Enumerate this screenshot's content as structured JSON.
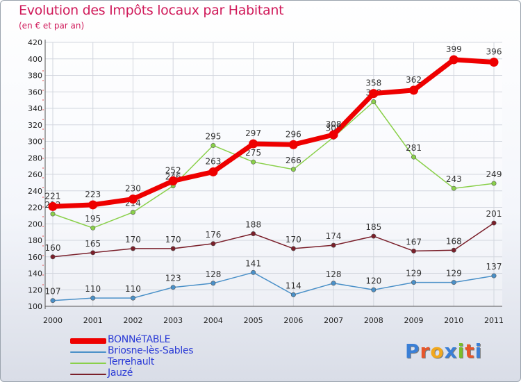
{
  "header": {
    "title": "Evolution des Impôts locaux par Habitant",
    "subtitle": "(en € et par an)"
  },
  "logo": {
    "text": "Proxiti",
    "colors": [
      "#3a7fd6",
      "#e8562a",
      "#f2a81d",
      "#3a7fd6",
      "#7abd2a",
      "#e8562a",
      "#3a7fd6"
    ]
  },
  "chart_data": {
    "type": "line",
    "categories": [
      "2000",
      "2001",
      "2002",
      "2003",
      "2004",
      "2005",
      "2006",
      "2007",
      "2008",
      "2009",
      "2010",
      "2011"
    ],
    "ylim": [
      100,
      420
    ],
    "yticks": [
      100,
      120,
      140,
      160,
      180,
      200,
      220,
      240,
      260,
      280,
      300,
      320,
      340,
      360,
      380,
      400,
      420
    ],
    "grid": true,
    "legend_position": "bottom-left",
    "series": [
      {
        "name": "Briosne-lès-Sables",
        "color": "#4a90c8",
        "values": [
          107,
          110,
          110,
          123,
          128,
          141,
          114,
          128,
          120,
          129,
          129,
          137
        ]
      },
      {
        "name": "Jauzé",
        "color": "#7a1f2a",
        "values": [
          160,
          165,
          170,
          170,
          176,
          188,
          170,
          174,
          185,
          167,
          168,
          201
        ]
      },
      {
        "name": "Terrehault",
        "color": "#8ad04a",
        "values": [
          212,
          195,
          214,
          246,
          295,
          275,
          266,
          305,
          348,
          281,
          243,
          249
        ]
      },
      {
        "name": "BONNéTABLE",
        "color": "#ee0000",
        "values": [
          221,
          223,
          230,
          252,
          263,
          297,
          296,
          308,
          358,
          362,
          399,
          396
        ]
      }
    ],
    "legend_order": [
      "BONNéTABLE",
      "Briosne-lès-Sables",
      "Terrehault",
      "Jauzé"
    ]
  }
}
